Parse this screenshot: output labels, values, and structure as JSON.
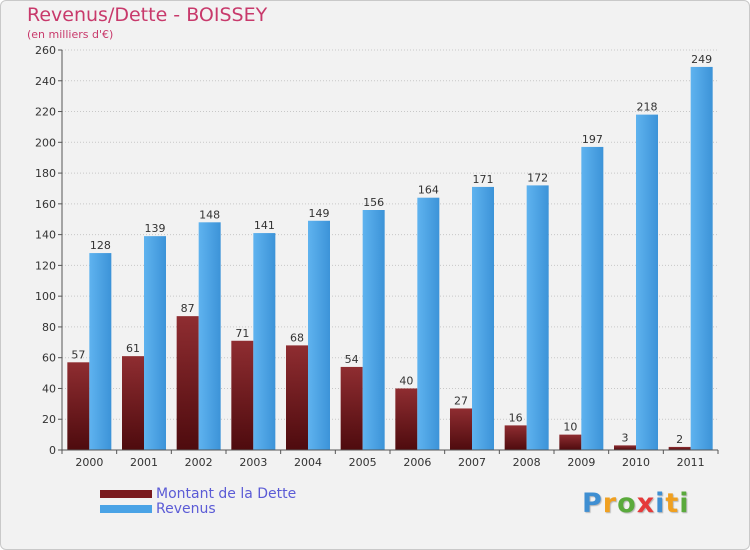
{
  "title": "Revenus/Dette - BOISSEY",
  "subtitle": "(en milliers d'€)",
  "logo": {
    "letters": [
      "P",
      "r",
      "o",
      "x",
      "i",
      "t",
      "i"
    ],
    "colors": [
      "#3f8fd2",
      "#f0a020",
      "#5aaa3c",
      "#e53b3b",
      "#3f8fd2",
      "#f0a020",
      "#5aaa3c"
    ]
  },
  "chart_data": {
    "type": "bar",
    "categories": [
      "2000",
      "2001",
      "2002",
      "2003",
      "2004",
      "2005",
      "2006",
      "2007",
      "2008",
      "2009",
      "2010",
      "2011"
    ],
    "series": [
      {
        "name": "Montant de la Dette",
        "color": "#7a1a1e",
        "values": [
          57,
          61,
          87,
          71,
          68,
          54,
          40,
          27,
          16,
          10,
          3,
          2
        ]
      },
      {
        "name": "Revenus",
        "color": "#4aa3e6",
        "values": [
          128,
          139,
          148,
          141,
          149,
          156,
          164,
          171,
          172,
          197,
          218,
          249
        ]
      }
    ],
    "yticks": [
      0,
      20,
      40,
      60,
      80,
      100,
      120,
      140,
      160,
      180,
      200,
      220,
      240,
      260
    ],
    "ylim": [
      0,
      260
    ],
    "grid": true,
    "legend": "bottom-left"
  }
}
